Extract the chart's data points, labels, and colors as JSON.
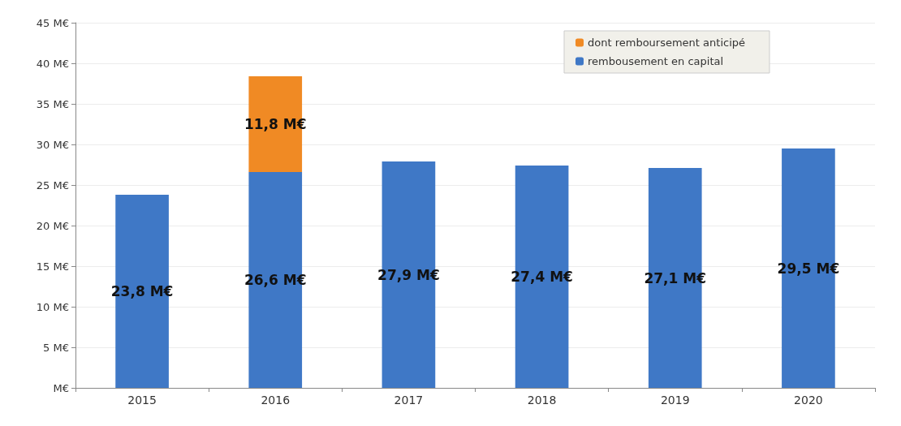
{
  "chart_data": {
    "type": "bar",
    "stacked": true,
    "categories": [
      "2015",
      "2016",
      "2017",
      "2018",
      "2019",
      "2020"
    ],
    "series": [
      {
        "name": "rembousement en capital",
        "color": "#3f78c6",
        "values": [
          23.8,
          26.6,
          27.9,
          27.4,
          27.1,
          29.5
        ],
        "value_labels": [
          "23,8 M€",
          "26,6 M€",
          "27,9 M€",
          "27,4 M€",
          "27,1 M€",
          "29,5 M€"
        ]
      },
      {
        "name": "dont remboursement anticipé",
        "color": "#f08a24",
        "values": [
          null,
          11.8,
          null,
          null,
          null,
          null
        ],
        "value_labels": [
          null,
          "11,8 M€",
          null,
          null,
          null,
          null
        ]
      }
    ],
    "ylim": [
      0,
      45
    ],
    "yticks": [
      {
        "value": 0,
        "label": "M€"
      },
      {
        "value": 5,
        "label": "5 M€"
      },
      {
        "value": 10,
        "label": "10 M€"
      },
      {
        "value": 15,
        "label": "15 M€"
      },
      {
        "value": 20,
        "label": "20 M€"
      },
      {
        "value": 25,
        "label": "25 M€"
      },
      {
        "value": 30,
        "label": "30 M€"
      },
      {
        "value": 35,
        "label": "35 M€"
      },
      {
        "value": 40,
        "label": "40 M€"
      },
      {
        "value": 45,
        "label": "45 M€"
      }
    ],
    "grid": "y",
    "legend": "top right"
  }
}
